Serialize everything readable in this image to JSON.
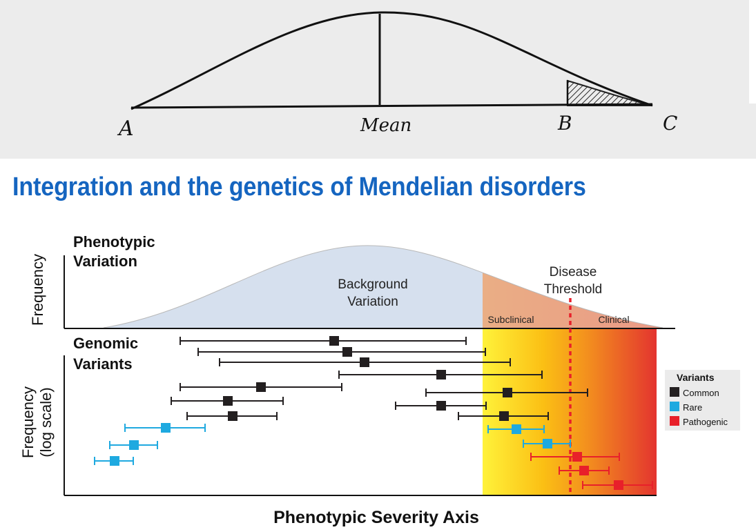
{
  "sketch": {
    "label_a": "A",
    "label_mean": "Mean",
    "label_b": "B",
    "label_c": "C"
  },
  "title": "Integration and the genetics of Mendelian disorders",
  "diagram": {
    "phenotypic_heading_line1": "Phenotypic",
    "phenotypic_heading_line2": "Variation",
    "genomic_heading_line1": "Genomic",
    "genomic_heading_line2": "Variants",
    "y_label_top": "Frequency",
    "y_label_bottom_line1": "Frequency",
    "y_label_bottom_line2": "(log scale)",
    "background_line1": "Background",
    "background_line2": "Variation",
    "threshold_line1": "Disease",
    "threshold_line2": "Threshold",
    "subclinical_label": "Subclinical",
    "clinical_label": "Clinical",
    "x_axis_label": "Phenotypic Severity Axis",
    "colors": {
      "common": "#231f20",
      "rare": "#1ea9e0",
      "pathogenic": "#e8202a",
      "curve_fill": "#d6e0ee",
      "threshold_line": "#e8202a"
    },
    "legend": {
      "title": "Variants",
      "items": [
        {
          "label": "Common",
          "color": "#231f20"
        },
        {
          "label": "Rare",
          "color": "#1ea9e0"
        },
        {
          "label": "Pathogenic",
          "color": "#e8202a"
        }
      ]
    }
  }
}
